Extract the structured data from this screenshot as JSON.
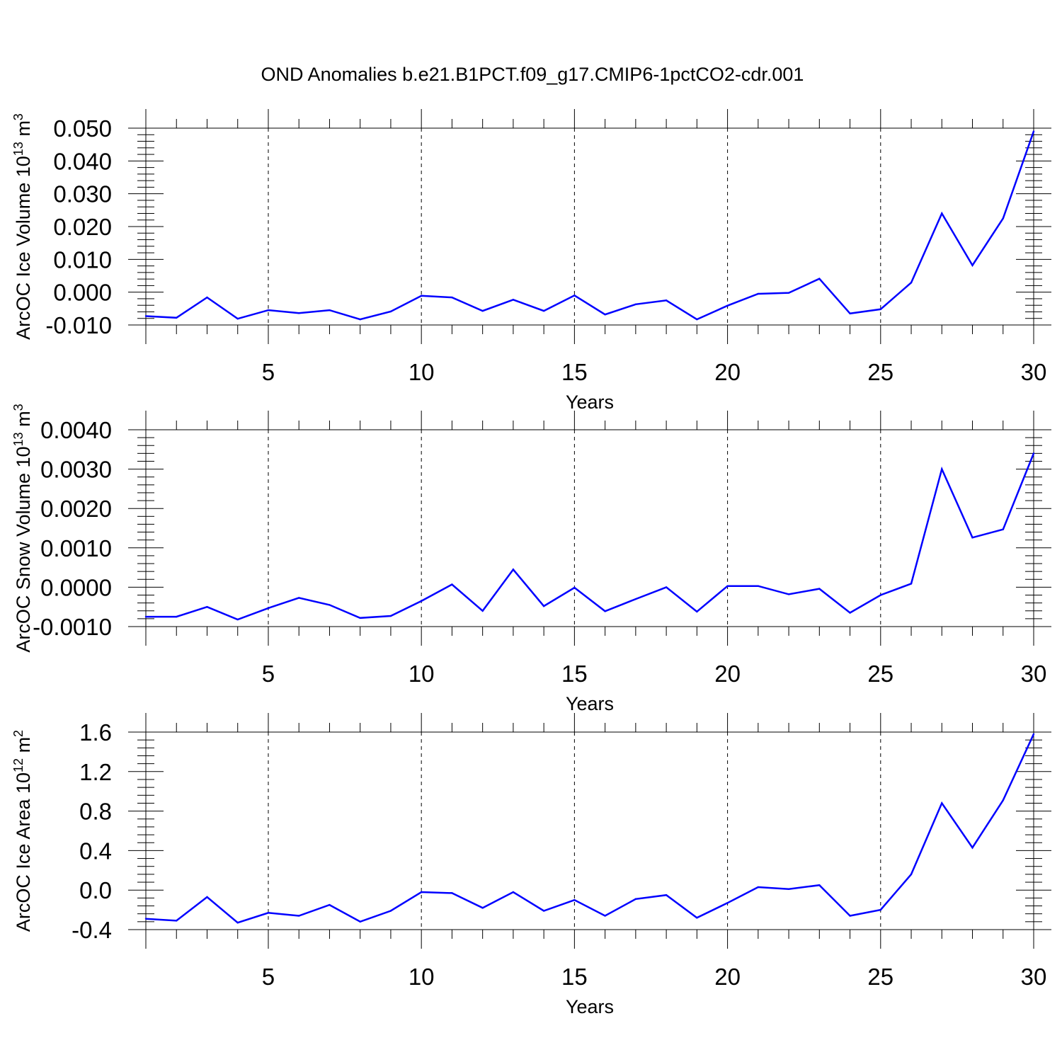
{
  "figure_title": "OND Anomalies b.e21.B1PCT.f09_g17.CMIP6-1pctCO2-cdr.001",
  "colors": {
    "series": "#0000ff",
    "axes": "#000000",
    "grid": "#000000",
    "background": "#ffffff"
  },
  "chart_data": [
    {
      "type": "line",
      "title": "OND Anomalies b.e21.B1PCT.f09_g17.CMIP6-1pctCO2-cdr.001",
      "xlabel": "Years",
      "ylabel": {
        "prefix": "ArcOC Ice Volume 10",
        "exponent": "13",
        "unit": " m",
        "unit_exponent": "3"
      },
      "xlim": [
        1,
        30
      ],
      "ylim": [
        -0.01,
        0.05
      ],
      "xticks": [
        5,
        10,
        15,
        20,
        25,
        30
      ],
      "xtick_labels": [
        "5",
        "10",
        "15",
        "20",
        "25",
        "30"
      ],
      "yticks": [
        -0.01,
        0.0,
        0.01,
        0.02,
        0.03,
        0.04,
        0.05
      ],
      "ytick_labels": [
        "-0.010",
        "0.000",
        "0.010",
        "0.020",
        "0.030",
        "0.040",
        "0.050"
      ],
      "grid": "vertical dashed at major x ticks",
      "series": [
        {
          "name": "ArcOC Ice Volume",
          "x": [
            1,
            2,
            3,
            4,
            5,
            6,
            7,
            8,
            9,
            10,
            11,
            12,
            13,
            14,
            15,
            16,
            17,
            18,
            19,
            20,
            21,
            22,
            23,
            24,
            25,
            26,
            27,
            28,
            29,
            30
          ],
          "values": [
            -0.0073,
            -0.0078,
            -0.0016,
            -0.0081,
            -0.0055,
            -0.0064,
            -0.0055,
            -0.0083,
            -0.0059,
            -0.0011,
            -0.0016,
            -0.0057,
            -0.0023,
            -0.0057,
            -0.001,
            -0.0068,
            -0.0037,
            -0.0025,
            -0.0083,
            -0.0041,
            -0.0005,
            -0.0002,
            0.0041,
            -0.0065,
            -0.0052,
            0.0029,
            0.024,
            0.0082,
            0.0225,
            0.049
          ]
        }
      ]
    },
    {
      "type": "line",
      "title": "",
      "xlabel": "Years",
      "ylabel": {
        "prefix": "ArcOC Snow Volume 10",
        "exponent": "13",
        "unit": " m",
        "unit_exponent": "3"
      },
      "xlim": [
        1,
        30
      ],
      "ylim": [
        -0.001,
        0.004
      ],
      "xticks": [
        5,
        10,
        15,
        20,
        25,
        30
      ],
      "xtick_labels": [
        "5",
        "10",
        "15",
        "20",
        "25",
        "30"
      ],
      "yticks": [
        -0.001,
        0.0,
        0.001,
        0.002,
        0.003,
        0.004
      ],
      "ytick_labels": [
        "-0.0010",
        "0.0000",
        "0.0010",
        "0.0020",
        "0.0030",
        "0.0040"
      ],
      "grid": "vertical dashed at major x ticks",
      "series": [
        {
          "name": "ArcOC Snow Volume",
          "x": [
            1,
            2,
            3,
            4,
            5,
            6,
            7,
            8,
            9,
            10,
            11,
            12,
            13,
            14,
            15,
            16,
            17,
            18,
            19,
            20,
            21,
            22,
            23,
            24,
            25,
            26,
            27,
            28,
            29,
            30
          ],
          "values": [
            -0.00075,
            -0.00075,
            -0.0005,
            -0.00082,
            -0.00053,
            -0.00027,
            -0.00045,
            -0.00078,
            -0.00073,
            -0.00035,
            7e-05,
            -0.0006,
            0.00045,
            -0.00048,
            -1e-05,
            -0.00061,
            -0.0003,
            0.0,
            -0.00062,
            3e-05,
            3e-05,
            -0.00018,
            -4e-05,
            -0.00065,
            -0.0002,
            9e-05,
            0.003,
            0.00126,
            0.00147,
            0.0034
          ]
        }
      ]
    },
    {
      "type": "line",
      "title": "",
      "xlabel": "Years",
      "ylabel": {
        "prefix": "ArcOC Ice Area 10",
        "exponent": "12",
        "unit": " m",
        "unit_exponent": "2"
      },
      "xlim": [
        1,
        30
      ],
      "ylim": [
        -0.4,
        1.6
      ],
      "xticks": [
        5,
        10,
        15,
        20,
        25,
        30
      ],
      "xtick_labels": [
        "5",
        "10",
        "15",
        "20",
        "25",
        "30"
      ],
      "yticks": [
        -0.4,
        0.0,
        0.4,
        0.8,
        1.2,
        1.6
      ],
      "ytick_labels": [
        "-0.4",
        "0.0",
        "0.4",
        "0.8",
        "1.2",
        "1.6"
      ],
      "grid": "vertical dashed at major x ticks",
      "series": [
        {
          "name": "ArcOC Ice Area",
          "x": [
            1,
            2,
            3,
            4,
            5,
            6,
            7,
            8,
            9,
            10,
            11,
            12,
            13,
            14,
            15,
            16,
            17,
            18,
            19,
            20,
            21,
            22,
            23,
            24,
            25,
            26,
            27,
            28,
            29,
            30
          ],
          "values": [
            -0.29,
            -0.31,
            -0.07,
            -0.33,
            -0.23,
            -0.26,
            -0.15,
            -0.32,
            -0.21,
            -0.02,
            -0.03,
            -0.18,
            -0.02,
            -0.21,
            -0.1,
            -0.26,
            -0.09,
            -0.05,
            -0.28,
            -0.13,
            0.03,
            0.01,
            0.05,
            -0.26,
            -0.2,
            0.16,
            0.88,
            0.43,
            0.91,
            1.58
          ]
        }
      ]
    }
  ]
}
